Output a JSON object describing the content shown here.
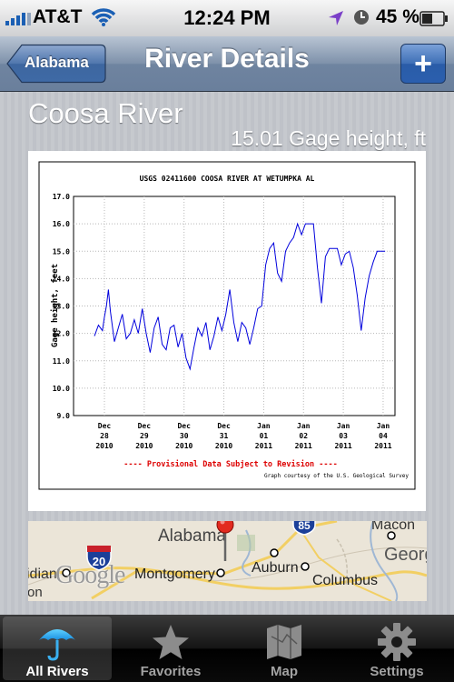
{
  "status_bar": {
    "carrier": "AT&T",
    "time": "12:24 PM",
    "battery": "45 %"
  },
  "nav": {
    "title": "River Details",
    "back_label": "Alabama",
    "add_label": "+"
  },
  "river": {
    "name": "Coosa River",
    "reading": "15.01 Gage height, ft"
  },
  "graph": {
    "title": "USGS 02411600 COOSA RIVER AT WETUMPKA AL",
    "ylabel": "Gage height, feet",
    "y_ticks": [
      "17.0",
      "16.0",
      "15.0",
      "14.0",
      "13.0",
      "12.0",
      "11.0",
      "10.0",
      "9.0"
    ],
    "x_ticks": [
      [
        "Dec",
        "28",
        "2010"
      ],
      [
        "Dec",
        "29",
        "2010"
      ],
      [
        "Dec",
        "30",
        "2010"
      ],
      [
        "Dec",
        "31",
        "2010"
      ],
      [
        "Jan",
        "01",
        "2011"
      ],
      [
        "Jan",
        "02",
        "2011"
      ],
      [
        "Jan",
        "03",
        "2011"
      ],
      [
        "Jan",
        "04",
        "2011"
      ]
    ],
    "provisional": "---- Provisional Data Subject to Revision ----",
    "courtesy": "Graph courtesy of the U.S. Geological Survey"
  },
  "chart_data": {
    "type": "line",
    "title": "USGS 02411600 COOSA RIVER AT WETUMPKA AL",
    "xlabel": "",
    "ylabel": "Gage height, feet",
    "ylim": [
      9.0,
      17.0
    ],
    "x_unit": "days since Dec 28 2010 00:00",
    "x": [
      -0.25,
      -0.15,
      -0.05,
      0.0,
      0.05,
      0.1,
      0.15,
      0.25,
      0.35,
      0.45,
      0.55,
      0.65,
      0.75,
      0.85,
      0.95,
      1.05,
      1.15,
      1.25,
      1.35,
      1.45,
      1.55,
      1.65,
      1.75,
      1.85,
      1.95,
      2.05,
      2.15,
      2.25,
      2.35,
      2.45,
      2.55,
      2.65,
      2.75,
      2.85,
      2.95,
      3.05,
      3.15,
      3.25,
      3.35,
      3.45,
      3.55,
      3.65,
      3.75,
      3.85,
      3.95,
      4.05,
      4.15,
      4.25,
      4.35,
      4.45,
      4.55,
      4.65,
      4.75,
      4.85,
      4.95,
      5.05,
      5.15,
      5.25,
      5.35,
      5.45,
      5.55,
      5.65,
      5.75,
      5.85,
      5.95,
      6.05,
      6.15,
      6.25,
      6.35,
      6.45,
      6.55,
      6.65,
      6.75,
      6.85,
      6.95,
      7.05
    ],
    "y": [
      11.9,
      12.3,
      12.1,
      12.6,
      13.0,
      13.6,
      12.8,
      11.7,
      12.2,
      12.7,
      11.8,
      12.0,
      12.5,
      12.0,
      12.9,
      12.0,
      11.3,
      12.2,
      12.6,
      11.6,
      11.4,
      12.2,
      12.3,
      11.5,
      12.0,
      11.1,
      10.7,
      11.5,
      12.2,
      11.9,
      12.4,
      11.4,
      11.9,
      12.6,
      12.1,
      12.7,
      13.6,
      12.4,
      11.7,
      12.4,
      12.2,
      11.6,
      12.2,
      12.9,
      13.0,
      14.5,
      15.1,
      15.3,
      14.2,
      13.9,
      15.0,
      15.3,
      15.5,
      16.0,
      15.6,
      16.0,
      16.0,
      16.0,
      14.4,
      13.1,
      14.8,
      15.1,
      15.1,
      15.1,
      14.5,
      14.9,
      15.0,
      14.4,
      13.4,
      12.1,
      13.3,
      14.1,
      14.6,
      15.0,
      15.0,
      15.0
    ],
    "grid": true
  },
  "map": {
    "labels": [
      {
        "text": "Alabama"
      },
      {
        "text": "Macon"
      },
      {
        "text": "Georg"
      },
      {
        "text": "idian"
      },
      {
        "text": "Montgomery"
      },
      {
        "text": "Auburn"
      },
      {
        "text": "Columbus"
      },
      {
        "text": "on"
      }
    ],
    "google": "Google",
    "shield_20": "20",
    "shield_85": "85"
  },
  "tabs": [
    {
      "label": "All Rivers",
      "icon": "umbrella-icon",
      "active": true
    },
    {
      "label": "Favorites",
      "icon": "star-icon",
      "active": false
    },
    {
      "label": "Map",
      "icon": "map-icon",
      "active": false
    },
    {
      "label": "Settings",
      "icon": "gear-icon",
      "active": false
    }
  ],
  "colors": {
    "nav": "#7187a4",
    "accent_blue": "#2b5fae",
    "tab_active": "#ffffff",
    "series": "#0000dd",
    "provisional": "#dd0000"
  }
}
